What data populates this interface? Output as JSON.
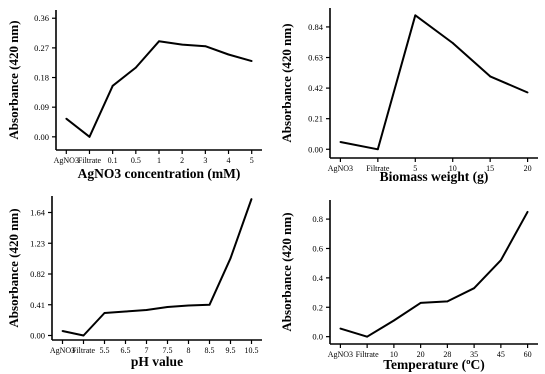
{
  "chart_data": [
    {
      "type": "line",
      "ylabel": "Absorbance (420 nm)",
      "xlabel": "AgNO3 concentration (mM)",
      "categories": [
        "AgNO3",
        "Filtrate",
        "0.1",
        "0.5",
        "1",
        "2",
        "3",
        "4",
        "5"
      ],
      "values": [
        0.055,
        0.0,
        0.155,
        0.21,
        0.29,
        0.28,
        0.275,
        0.25,
        0.23
      ],
      "yticks": [
        "0.00",
        "0.09",
        "0.18",
        "0.27",
        "0.36"
      ],
      "ylim": [
        -0.04,
        0.385
      ]
    },
    {
      "type": "line",
      "ylabel": "Absorbance (420 nm)",
      "xlabel": "Biomass weight (g)",
      "categories": [
        "AgNO3",
        "Filtrate",
        "5",
        "10",
        "15",
        "20"
      ],
      "values": [
        0.05,
        0.0,
        0.92,
        0.73,
        0.5,
        0.39
      ],
      "yticks": [
        "0.00",
        "0.21",
        "0.42",
        "0.63",
        "0.84"
      ],
      "ylim": [
        -0.06,
        0.97
      ]
    },
    {
      "type": "line",
      "ylabel": "Absorbance (420 nm)",
      "xlabel": "pH value",
      "categories": [
        "AgNO3",
        "Filtrate",
        "5.5",
        "6.5",
        "7",
        "7.5",
        "8",
        "8.5",
        "9.5",
        "10.5"
      ],
      "values": [
        0.06,
        0.0,
        0.3,
        0.32,
        0.34,
        0.38,
        0.4,
        0.41,
        1.03,
        1.82
      ],
      "yticks": [
        "0.00",
        "0.41",
        "0.82",
        "1.23",
        "1.64"
      ],
      "ylim": [
        -0.06,
        1.86
      ]
    },
    {
      "type": "line",
      "ylabel": "Absorbance (420 nm)",
      "xlabel": "Temperature (ºC)",
      "categories": [
        "AgNO3",
        "Filtrate",
        "10",
        "20",
        "28",
        "35",
        "45",
        "60"
      ],
      "values": [
        0.055,
        0.0,
        0.11,
        0.23,
        0.24,
        0.33,
        0.52,
        0.85
      ],
      "yticks": [
        "0.0",
        "0.2",
        "0.4",
        "0.6",
        "0.8"
      ],
      "ylim": [
        -0.05,
        0.93
      ]
    }
  ]
}
